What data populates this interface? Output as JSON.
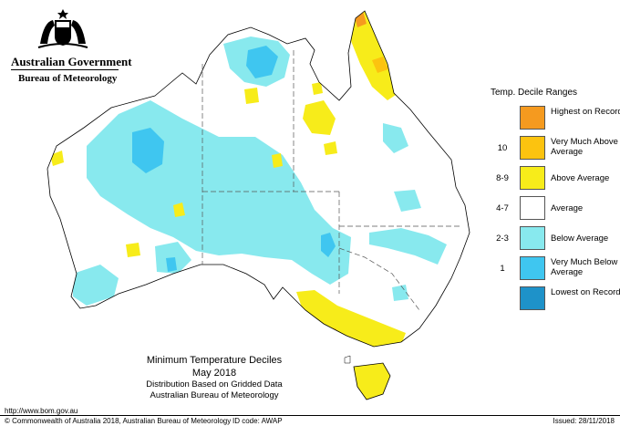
{
  "header": {
    "government": "Australian Government",
    "bureau": "Bureau of Meteorology"
  },
  "legend": {
    "title": "Temp. Decile Ranges",
    "items": [
      {
        "code": "",
        "label": "Highest on Record",
        "color": "#f59a1f"
      },
      {
        "code": "10",
        "label": "Very Much Above Average",
        "color": "#fcc30f"
      },
      {
        "code": "8-9",
        "label": "Above Average",
        "color": "#f7ec1a"
      },
      {
        "code": "4-7",
        "label": "Average",
        "color": "#ffffff"
      },
      {
        "code": "2-3",
        "label": "Below Average",
        "color": "#88e9ee"
      },
      {
        "code": "1",
        "label": "Very Much Below Average",
        "color": "#3fc6f0"
      },
      {
        "code": "",
        "label": "Lowest on Record",
        "color": "#1e92c9"
      }
    ]
  },
  "map_title": {
    "line1": "Minimum Temperature Deciles",
    "line2": "May 2018",
    "line3": "Distribution Based on Gridded Data",
    "line4": "Australian Bureau of Meteorology"
  },
  "footer": {
    "url": "http://www.bom.gov.au",
    "copyright": "© Commonwealth of Australia 2018, Australian Bureau of Meteorology",
    "id_code": "ID code: AWAP",
    "issued": "Issued: 28/11/2018"
  }
}
